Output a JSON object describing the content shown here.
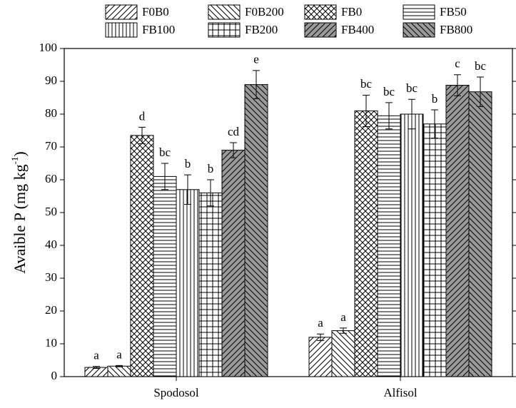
{
  "chart_data": {
    "type": "bar",
    "ylabel_parts": [
      "Avaible P (mg kg",
      "-1",
      ")"
    ],
    "categories": [
      "Spodosol",
      "Alfisol"
    ],
    "ylim": [
      0,
      100
    ],
    "yticks": [
      0,
      10,
      20,
      30,
      40,
      50,
      60,
      70,
      80,
      90,
      100
    ],
    "series": [
      {
        "name": "F0B0",
        "pattern": "slash",
        "color": "#000000",
        "fill": "#ffffff",
        "values": [
          2.8,
          12
        ],
        "errors": [
          0.3,
          1
        ],
        "annotations": [
          "a",
          "a"
        ]
      },
      {
        "name": "F0B200",
        "pattern": "backslash",
        "color": "#000000",
        "fill": "#ffffff",
        "values": [
          3.2,
          14
        ],
        "errors": [
          0.2,
          0.8
        ],
        "annotations": [
          "a",
          "a"
        ]
      },
      {
        "name": "FB0",
        "pattern": "crosshatch",
        "color": "#000000",
        "fill": "#ffffff",
        "values": [
          73.5,
          81
        ],
        "errors": [
          2.5,
          4.8
        ],
        "annotations": [
          "d",
          "bc"
        ]
      },
      {
        "name": "FB50",
        "pattern": "horizontal",
        "color": "#000000",
        "fill": "#ffffff",
        "values": [
          61,
          79.5
        ],
        "errors": [
          4,
          4
        ],
        "annotations": [
          "bc",
          "bc"
        ]
      },
      {
        "name": "FB100",
        "pattern": "vertical",
        "color": "#000000",
        "fill": "#ffffff",
        "values": [
          57,
          80
        ],
        "errors": [
          4.5,
          4.5
        ],
        "annotations": [
          "b",
          "bc"
        ]
      },
      {
        "name": "FB200",
        "pattern": "grid",
        "color": "#000000",
        "fill": "#ffffff",
        "values": [
          56,
          77
        ],
        "errors": [
          4,
          4.3
        ],
        "annotations": [
          "b",
          "b"
        ]
      },
      {
        "name": "FB400",
        "pattern": "slash",
        "color": "#000000",
        "fill": "#9a9a9a",
        "values": [
          69,
          88.8
        ],
        "errors": [
          2.3,
          3.2
        ],
        "annotations": [
          "cd",
          "c"
        ]
      },
      {
        "name": "FB800",
        "pattern": "backslash",
        "color": "#000000",
        "fill": "#9a9a9a",
        "values": [
          89,
          86.8
        ],
        "errors": [
          4.3,
          4.5
        ],
        "annotations": [
          "e",
          "bc"
        ]
      }
    ]
  }
}
